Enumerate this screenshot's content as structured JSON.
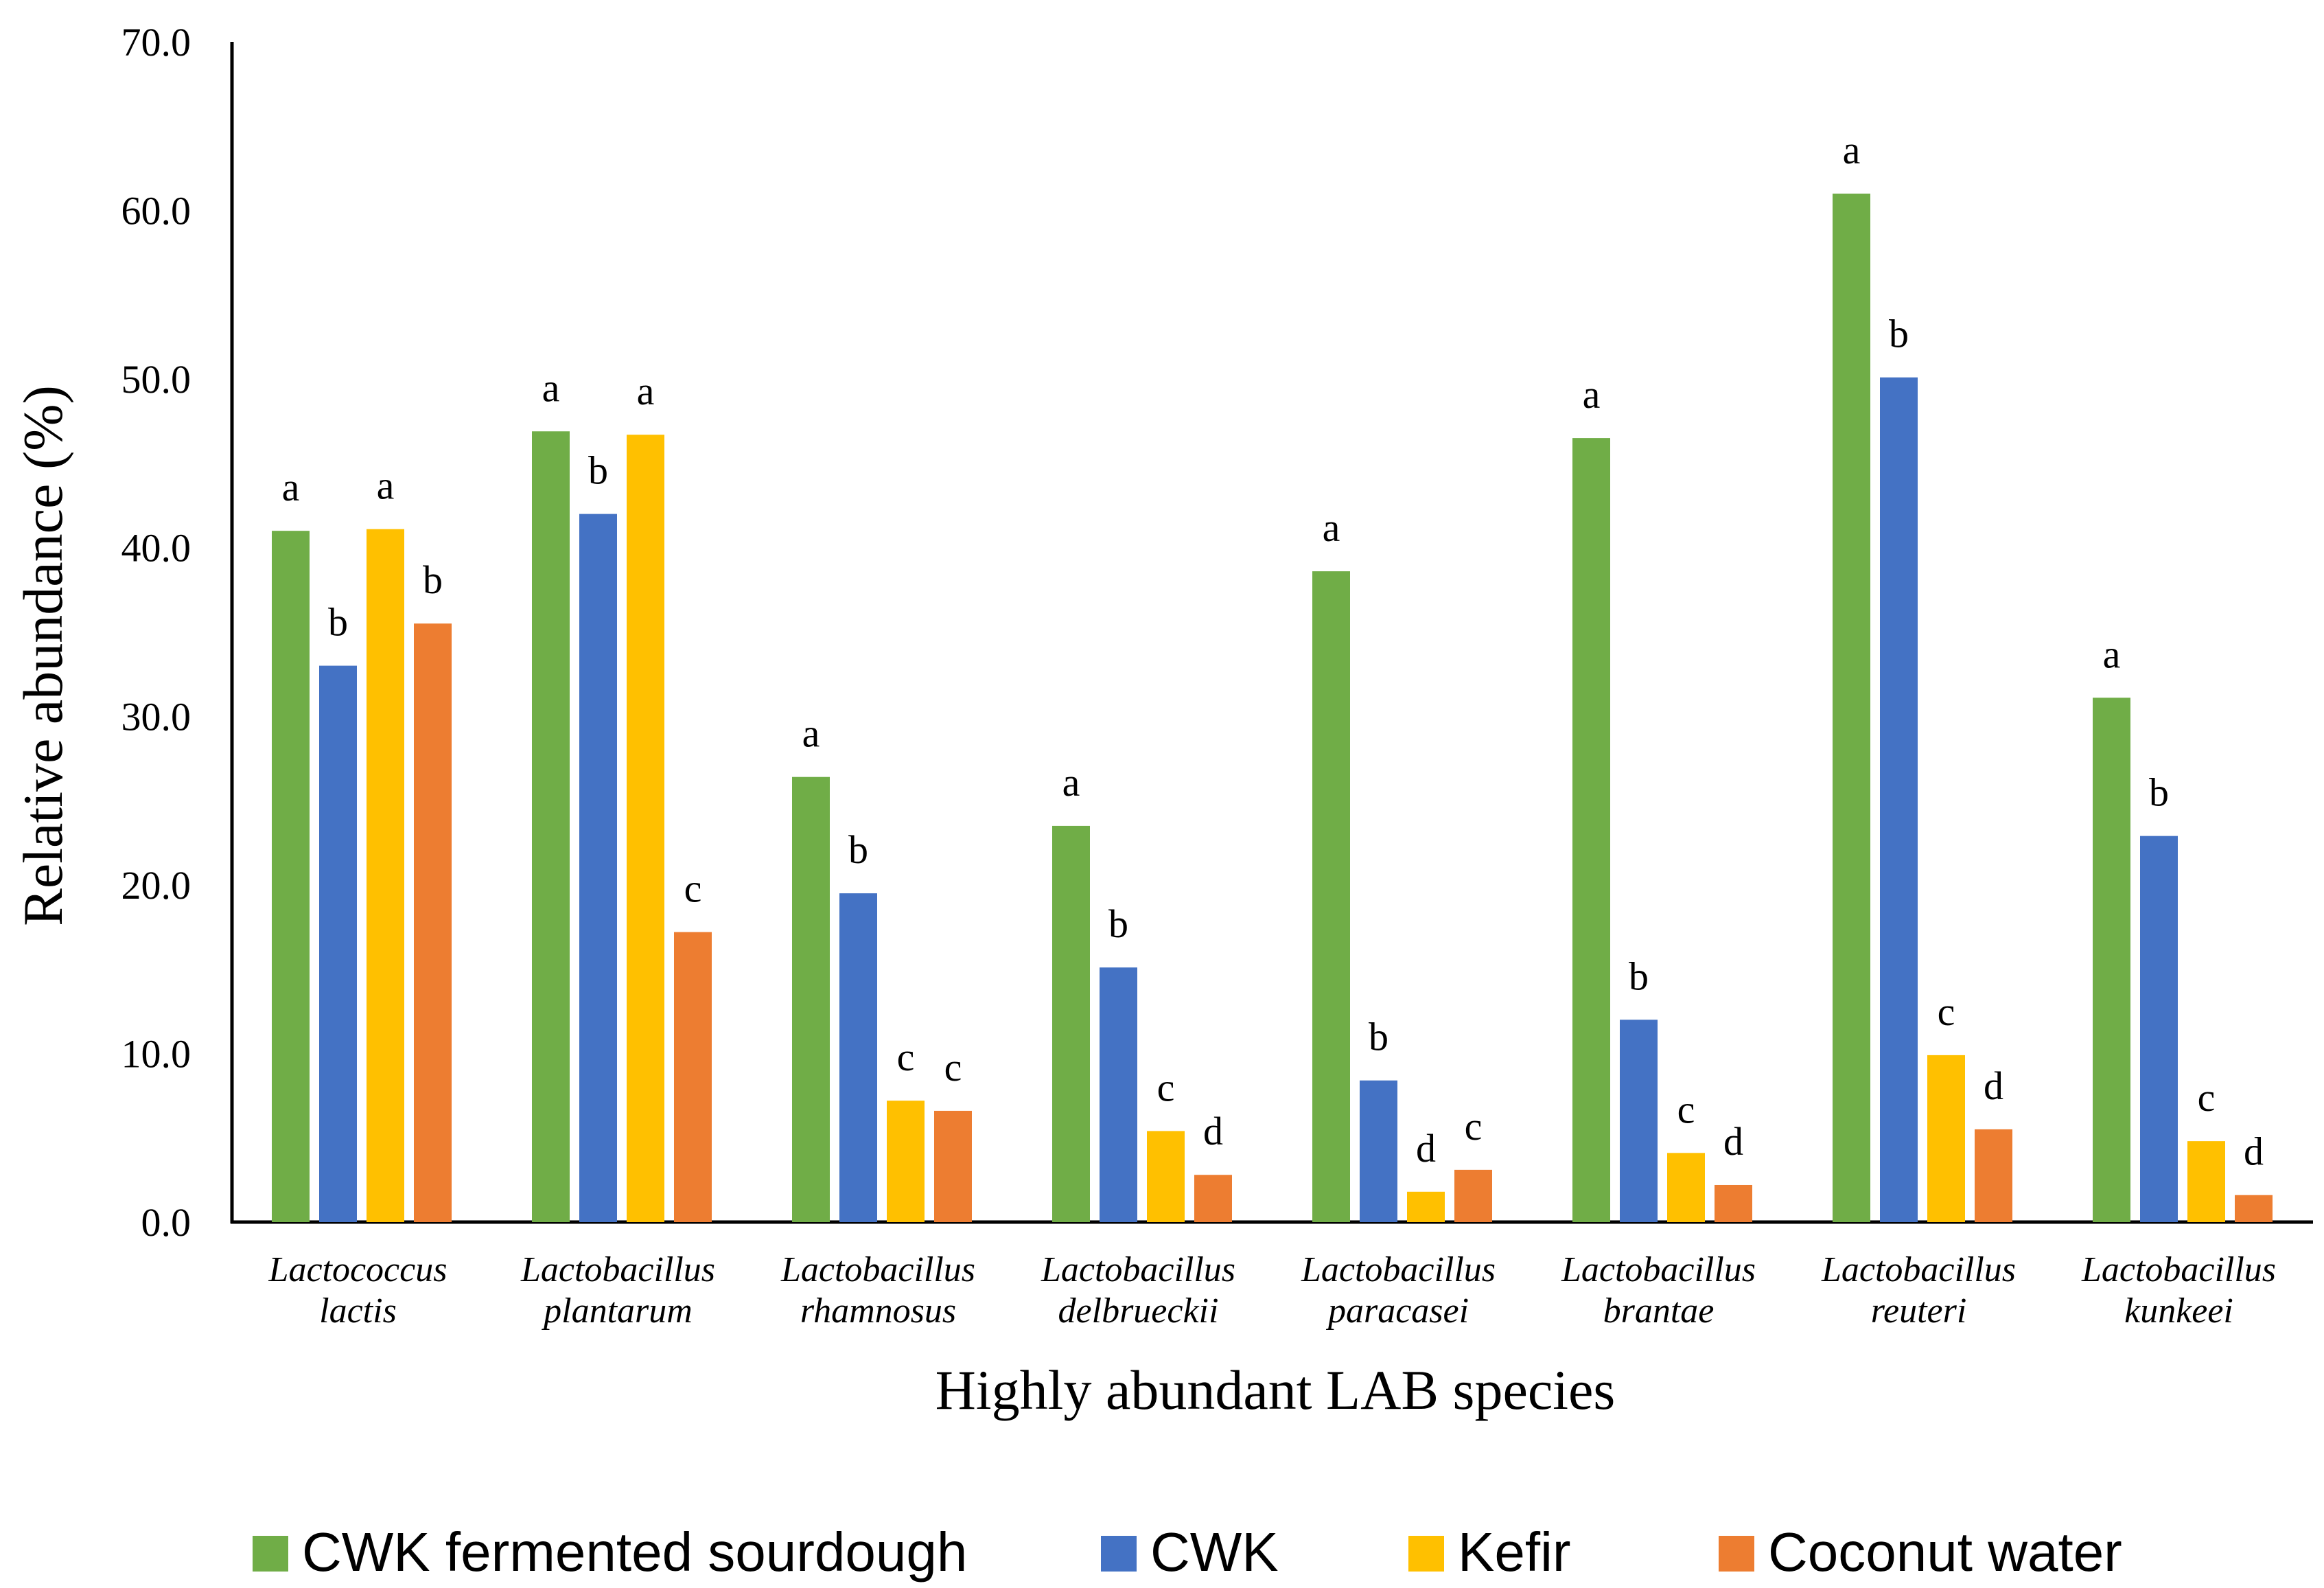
{
  "chart_data": {
    "type": "bar",
    "title": "",
    "xlabel": "Highly abundant LAB species",
    "ylabel": "Relative abundance (%)",
    "ylim": [
      0,
      70
    ],
    "yticks": [
      "0.0",
      "10.0",
      "20.0",
      "30.0",
      "40.0",
      "50.0",
      "60.0",
      "70.0"
    ],
    "grid": false,
    "legend_position": "bottom",
    "categories": [
      [
        "Lactococcus",
        "lactis"
      ],
      [
        "Lactobacillus",
        "plantarum"
      ],
      [
        "Lactobacillus",
        "rhamnosus"
      ],
      [
        "Lactobacillus",
        "delbrueckii"
      ],
      [
        "Lactobacillus",
        "paracasei"
      ],
      [
        "Lactobacillus",
        "brantae"
      ],
      [
        "Lactobacillus",
        "reuteri"
      ],
      [
        "Lactobacillus",
        "kunkeei"
      ]
    ],
    "series": [
      {
        "name": "CWK fermented sourdough",
        "color": "#70AD47",
        "values": [
          41.0,
          46.9,
          26.4,
          23.5,
          38.6,
          46.5,
          61.0,
          31.1
        ],
        "labels": [
          "a",
          "a",
          "a",
          "a",
          "a",
          "a",
          "a",
          "a"
        ]
      },
      {
        "name": "CWK",
        "color": "#4472C4",
        "values": [
          33.0,
          42.0,
          19.5,
          15.1,
          8.4,
          12.0,
          50.1,
          22.9
        ],
        "labels": [
          "b",
          "b",
          "b",
          "b",
          "b",
          "b",
          "b",
          "b"
        ]
      },
      {
        "name": "Kefir",
        "color": "#FFC000",
        "values": [
          41.1,
          46.7,
          7.2,
          5.4,
          1.8,
          4.1,
          9.9,
          4.8
        ],
        "labels": [
          "a",
          "a",
          "c",
          "c",
          "d",
          "c",
          "c",
          "c"
        ]
      },
      {
        "name": "Coconut water",
        "color": "#ED7D31",
        "values": [
          35.5,
          17.2,
          6.6,
          2.8,
          3.1,
          2.2,
          5.5,
          1.6
        ],
        "labels": [
          "b",
          "c",
          "c",
          "d",
          "c",
          "d",
          "d",
          "d"
        ]
      }
    ]
  }
}
